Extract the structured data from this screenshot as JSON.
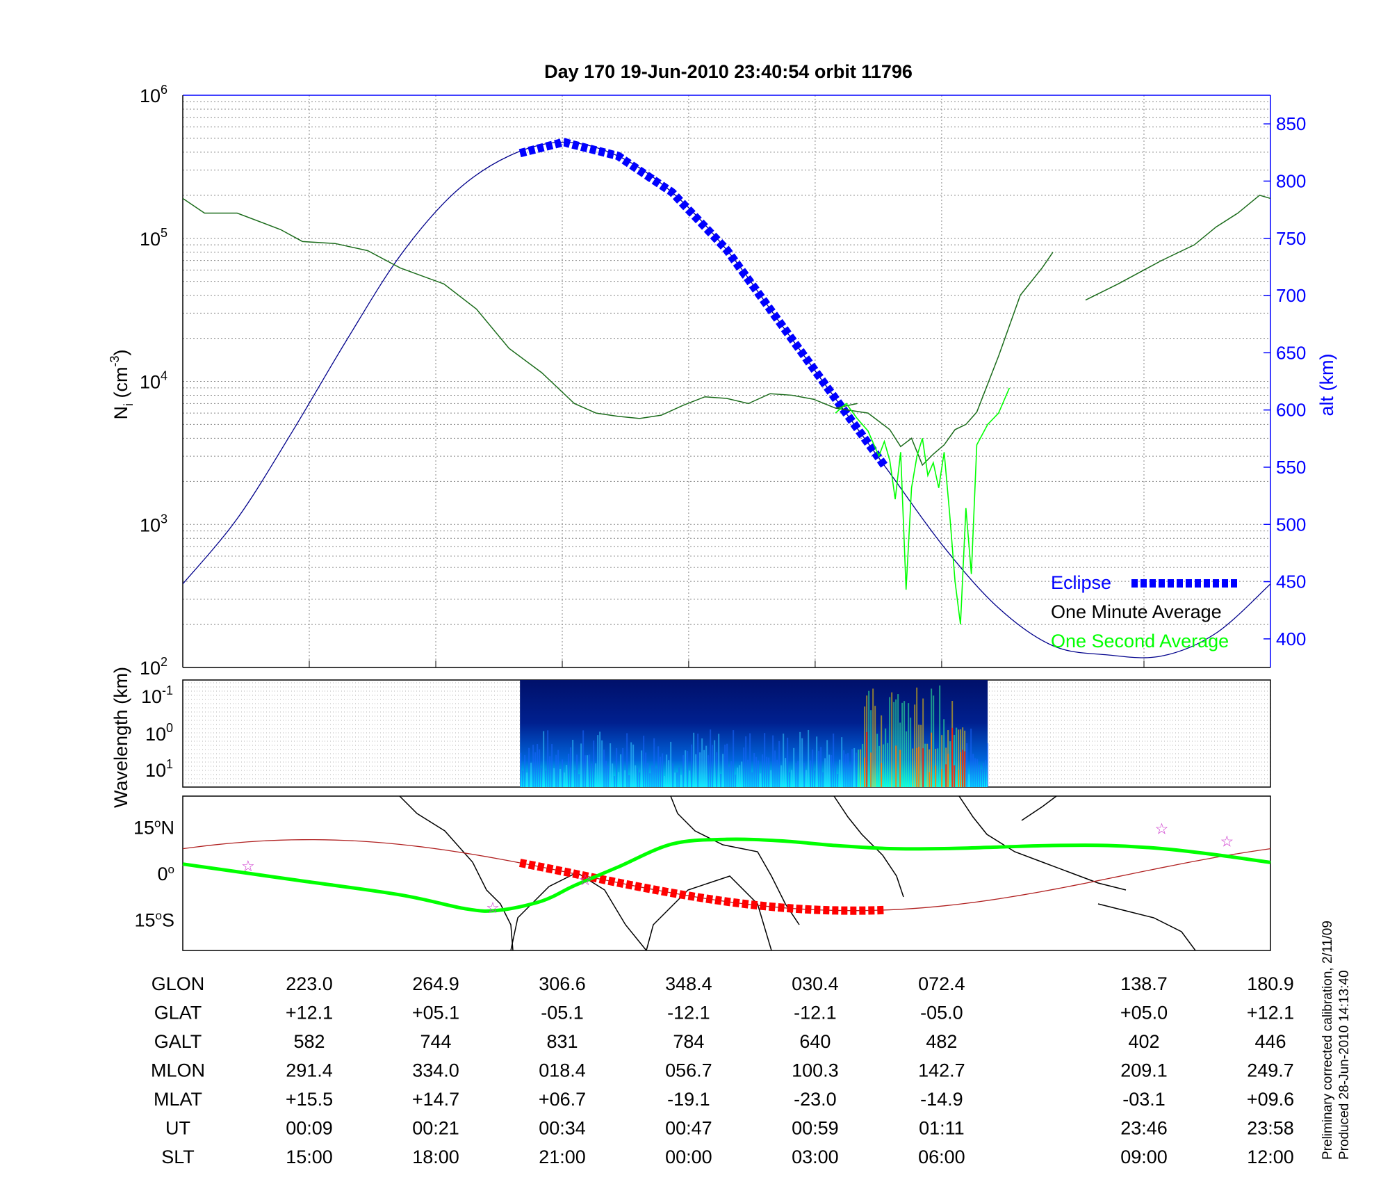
{
  "title": "Day 170  19-Jun-2010 23:40:54   orbit 11796",
  "colors": {
    "altitude": "#00008B",
    "eclipse": "#0000FF",
    "one_minute": "#1a6b1a",
    "one_second": "#00FF00",
    "track": "#b02020",
    "eclipse_track": "#FF0000",
    "star": "#cc33cc",
    "grid": "#888888"
  },
  "calibration_note": "Preliminary corrected calibration, 2/11/09",
  "produced_note": "Produced 28-Jun-2010 14:13:40",
  "chart_data": [
    {
      "type": "line",
      "ylabel": "N_i (cm^-3)",
      "ylabel_base": "N",
      "ylabel_sub": "i",
      "ylabel_unit_pre": " (cm",
      "ylabel_unit_exp": "-3",
      "ylabel_unit_post": ")",
      "y_scale": "log",
      "ylim": [
        100,
        1000000
      ],
      "y_tick_base": "10",
      "y_tick_exponents": [
        "2",
        "3",
        "4",
        "5",
        "6"
      ],
      "y2label": "alt (km)",
      "y2lim": [
        375,
        875
      ],
      "y2_ticks": [
        "400",
        "450",
        "500",
        "550",
        "600",
        "650",
        "700",
        "750",
        "800",
        "850"
      ],
      "xlim": [
        0,
        1
      ],
      "x_ticks": [
        0.1163,
        0.2326,
        0.3489,
        0.4651,
        0.5814,
        0.6977,
        0.8837,
        1.0
      ],
      "grid": true,
      "legend_position": "bottom-right",
      "legend": [
        {
          "name": "Eclipse",
          "color": "#0000FF",
          "style": "thick-dashed"
        },
        {
          "name": "One Minute Average",
          "color": "#000000"
        },
        {
          "name": "One Second Average",
          "color": "#00FF00"
        }
      ],
      "series": [
        {
          "name": "alt (km)",
          "axis": "right",
          "points": [
            [
              0,
              448
            ],
            [
              0.05,
              505
            ],
            [
              0.1,
              580
            ],
            [
              0.15,
              660
            ],
            [
              0.2,
              735
            ],
            [
              0.25,
              790
            ],
            [
              0.3,
              822
            ],
            [
              0.35,
              834
            ],
            [
              0.4,
              822
            ],
            [
              0.45,
              790
            ],
            [
              0.5,
              740
            ],
            [
              0.55,
              675
            ],
            [
              0.6,
              610
            ],
            [
              0.65,
              545
            ],
            [
              0.7,
              480
            ],
            [
              0.75,
              427
            ],
            [
              0.8,
              394
            ],
            [
              0.85,
              386
            ],
            [
              0.9,
              385
            ],
            [
              0.95,
              405
            ],
            [
              1.0,
              448
            ]
          ]
        },
        {
          "name": "Eclipse",
          "axis": "right",
          "x_range": [
            0.31,
            0.645
          ]
        },
        {
          "name": "One Minute Average",
          "points": [
            [
              0,
              190000
            ],
            [
              0.02,
              150000
            ],
            [
              0.05,
              150000
            ],
            [
              0.09,
              115000
            ],
            [
              0.11,
              95000
            ],
            [
              0.14,
              92000
            ],
            [
              0.17,
              82000
            ],
            [
              0.2,
              62000
            ],
            [
              0.24,
              48000
            ],
            [
              0.27,
              32000
            ],
            [
              0.3,
              17000
            ],
            [
              0.33,
              11500
            ],
            [
              0.36,
              7000
            ],
            [
              0.38,
              6000
            ],
            [
              0.4,
              5700
            ],
            [
              0.42,
              5500
            ],
            [
              0.44,
              5800
            ],
            [
              0.46,
              6800
            ],
            [
              0.48,
              7800
            ],
            [
              0.5,
              7600
            ],
            [
              0.52,
              7000
            ],
            [
              0.54,
              8200
            ],
            [
              0.56,
              8000
            ],
            [
              0.58,
              7500
            ],
            [
              0.6,
              6500
            ],
            [
              0.62,
              7000
            ],
            [
              0.6,
              6500
            ],
            [
              0.63,
              6000
            ],
            [
              0.65,
              4600
            ],
            [
              0.66,
              3500
            ],
            [
              0.67,
              4000
            ],
            [
              0.68,
              2600
            ],
            [
              0.69,
              3100
            ],
            [
              0.7,
              3600
            ],
            [
              0.71,
              4600
            ],
            [
              0.72,
              5000
            ],
            [
              0.73,
              6100
            ],
            [
              0.75,
              15000
            ],
            [
              0.77,
              40000
            ],
            [
              0.79,
              62000
            ],
            [
              0.8,
              80000
            ]
          ]
        },
        {
          "name": "One Minute Average (tail)",
          "points": [
            [
              0.83,
              37000
            ],
            [
              0.86,
              48000
            ],
            [
              0.88,
              58000
            ],
            [
              0.9,
              70000
            ],
            [
              0.93,
              90000
            ],
            [
              0.95,
              120000
            ],
            [
              0.97,
              150000
            ],
            [
              0.99,
              200000
            ],
            [
              1.0,
              190000
            ]
          ]
        },
        {
          "name": "One Second Average",
          "points": [
            [
              0.6,
              6000
            ],
            [
              0.61,
              7000
            ],
            [
              0.62,
              5500
            ],
            [
              0.63,
              4500
            ],
            [
              0.64,
              3000
            ],
            [
              0.645,
              3800
            ],
            [
              0.65,
              2800
            ],
            [
              0.655,
              1500
            ],
            [
              0.66,
              3200
            ],
            [
              0.665,
              350
            ],
            [
              0.67,
              1800
            ],
            [
              0.675,
              3000
            ],
            [
              0.68,
              4000
            ],
            [
              0.685,
              2200
            ],
            [
              0.69,
              2700
            ],
            [
              0.695,
              1800
            ],
            [
              0.7,
              3200
            ],
            [
              0.705,
              1200
            ],
            [
              0.71,
              400
            ],
            [
              0.715,
              200
            ],
            [
              0.72,
              1300
            ],
            [
              0.725,
              450
            ],
            [
              0.73,
              3600
            ],
            [
              0.74,
              5000
            ],
            [
              0.75,
              6000
            ],
            [
              0.76,
              9000
            ]
          ]
        }
      ]
    },
    {
      "type": "heatmap",
      "ylabel": "Wavelength (km)",
      "y_scale": "log",
      "y_tick_base": "10",
      "y_tick_exponents": [
        "-1",
        "0",
        "1"
      ],
      "x_range": [
        0.31,
        0.74
      ],
      "colormap": "jet",
      "hot_regions": [
        [
          0.62,
          0.72
        ]
      ]
    },
    {
      "type": "line",
      "ylim": [
        -25,
        25
      ],
      "y_ticks": [
        {
          "value": 15,
          "label": "15",
          "suffix": "N"
        },
        {
          "value": 0,
          "label": "0",
          "suffix": ""
        },
        {
          "value": -15,
          "label": "15",
          "suffix": "S"
        }
      ],
      "xlim": [
        180.9,
        540.9
      ],
      "series": [
        {
          "name": "orbit track",
          "color": "#b02020"
        },
        {
          "name": "eclipse track",
          "color": "#FF0000",
          "x_range": [
            0.31,
            0.645
          ]
        },
        {
          "name": "magnetic equator",
          "color": "#00FF00",
          "points": [
            [
              0,
              3
            ],
            [
              0.1,
              -2
            ],
            [
              0.2,
              -7
            ],
            [
              0.26,
              -11.5
            ],
            [
              0.29,
              -12
            ],
            [
              0.33,
              -9
            ],
            [
              0.36,
              -4
            ],
            [
              0.4,
              2
            ],
            [
              0.45,
              9.5
            ],
            [
              0.5,
              11
            ],
            [
              0.55,
              10.5
            ],
            [
              0.6,
              9
            ],
            [
              0.65,
              8
            ],
            [
              0.7,
              8
            ],
            [
              0.75,
              8.5
            ],
            [
              0.8,
              9
            ],
            [
              0.85,
              9
            ],
            [
              0.9,
              8
            ],
            [
              0.95,
              6
            ],
            [
              1.0,
              3.5
            ]
          ]
        }
      ],
      "stars": [
        [
          0.06,
          2.5
        ],
        [
          0.285,
          -11
        ],
        [
          0.37,
          -2
        ],
        [
          0.9,
          14.5
        ],
        [
          0.96,
          10.5
        ]
      ]
    },
    {
      "type": "table",
      "row_labels": [
        "GLON",
        "GLAT",
        "GALT",
        "MLON",
        "MLAT",
        "UT",
        "SLT"
      ],
      "column_x": [
        0.1163,
        0.2326,
        0.3489,
        0.4651,
        0.5814,
        0.6977,
        0.8837,
        1.0
      ],
      "columns": [
        [
          "223.0",
          "+12.1",
          "582",
          "291.4",
          "+15.5",
          "00:09",
          "15:00"
        ],
        [
          "264.9",
          "+05.1",
          "744",
          "334.0",
          "+14.7",
          "00:21",
          "18:00"
        ],
        [
          "306.6",
          "-05.1",
          "831",
          "018.4",
          "+06.7",
          "00:34",
          "21:00"
        ],
        [
          "348.4",
          "-12.1",
          "784",
          "056.7",
          "-19.1",
          "00:47",
          "00:00"
        ],
        [
          "030.4",
          "-12.1",
          "640",
          "100.3",
          "-23.0",
          "00:59",
          "03:00"
        ],
        [
          "072.4",
          "-05.0",
          "482",
          "142.7",
          "-14.9",
          "01:11",
          "06:00"
        ],
        [
          "138.7",
          "+05.0",
          "402",
          "209.1",
          "-03.1",
          "23:46",
          "09:00"
        ],
        [
          "180.9",
          "+12.1",
          "446",
          "249.7",
          "+09.6",
          "23:58",
          "12:00"
        ]
      ]
    }
  ]
}
